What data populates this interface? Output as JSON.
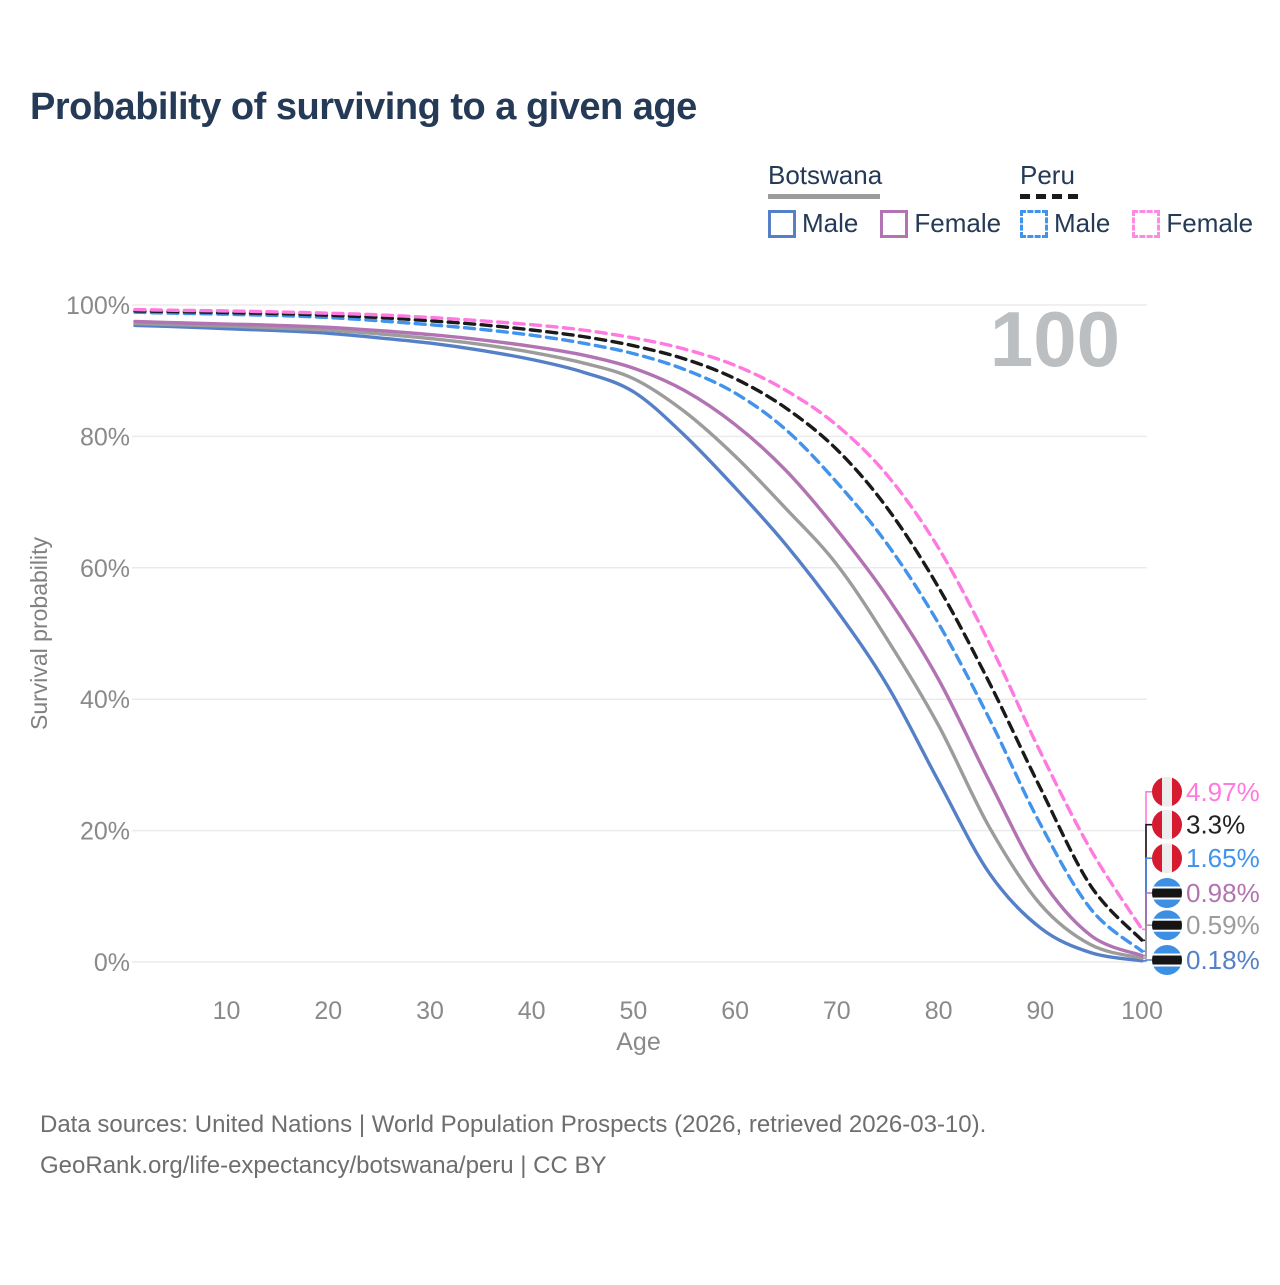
{
  "page": {
    "title": "Probability of surviving to a given age",
    "watermark": "100"
  },
  "legend": {
    "groups": [
      {
        "id": "botswana",
        "label": "Botswana",
        "line": {
          "style": "solid",
          "color": "#9c9c9c"
        },
        "items": [
          {
            "label": "Male",
            "color": "#5580c8",
            "dash": false
          },
          {
            "label": "Female",
            "color": "#b273b2",
            "dash": false
          }
        ]
      },
      {
        "id": "peru",
        "label": "Peru",
        "line": {
          "style": "dashed",
          "color": "#1a1a1a"
        },
        "items": [
          {
            "label": "Male",
            "color": "#4193ec",
            "dash": true
          },
          {
            "label": "Female",
            "color": "#ff8ae4",
            "dash": true
          }
        ]
      }
    ]
  },
  "flags": {
    "peru": {
      "red": "#d61a30",
      "white": "#ededed"
    },
    "botswana": {
      "blue": "#3c8fe3",
      "black": "#151515",
      "white": "#ffffff"
    }
  },
  "chart_data": {
    "type": "line",
    "title": "Probability of surviving to a given age",
    "xlabel": "Age",
    "ylabel": "Survival probability",
    "xlim": [
      1,
      100
    ],
    "ylim": [
      0,
      100
    ],
    "grid": "horizontal",
    "legend_position": "top-right",
    "x_ticks": [
      {
        "v": 10,
        "label": "10"
      },
      {
        "v": 20,
        "label": "20"
      },
      {
        "v": 30,
        "label": "30"
      },
      {
        "v": 40,
        "label": "40"
      },
      {
        "v": 50,
        "label": "50"
      },
      {
        "v": 60,
        "label": "60"
      },
      {
        "v": 70,
        "label": "70"
      },
      {
        "v": 80,
        "label": "80"
      },
      {
        "v": 90,
        "label": "90"
      },
      {
        "v": 100,
        "label": "100"
      }
    ],
    "y_ticks": [
      {
        "v": 100,
        "label": "100%"
      },
      {
        "v": 80,
        "label": "80%"
      },
      {
        "v": 60,
        "label": "60%"
      },
      {
        "v": 40,
        "label": "40%"
      },
      {
        "v": 20,
        "label": "20%"
      },
      {
        "v": 0,
        "label": "0%"
      }
    ],
    "series": [
      {
        "name": "Peru - Female",
        "country": "peru",
        "sex": "female",
        "color": "#ff7ae0",
        "label_color": "#ff7ae0",
        "dash": true,
        "flag": "peru",
        "end_label": "4.97%",
        "end_value": 4.97,
        "label_row_pct": 25.9,
        "points": [
          [
            1,
            99.3
          ],
          [
            5,
            99.2
          ],
          [
            10,
            99.1
          ],
          [
            15,
            98.95
          ],
          [
            20,
            98.75
          ],
          [
            25,
            98.5
          ],
          [
            30,
            98.1
          ],
          [
            35,
            97.6
          ],
          [
            40,
            97.0
          ],
          [
            45,
            96.2
          ],
          [
            50,
            95.0
          ],
          [
            55,
            93.3
          ],
          [
            60,
            90.8
          ],
          [
            65,
            87.0
          ],
          [
            70,
            81.7
          ],
          [
            75,
            74.0
          ],
          [
            80,
            63.0
          ],
          [
            85,
            48.5
          ],
          [
            90,
            32.0
          ],
          [
            95,
            17.0
          ],
          [
            100,
            4.97
          ]
        ]
      },
      {
        "name": "Peru - Both sexes",
        "country": "peru",
        "sex": "both",
        "color": "#1a1a1a",
        "label_color": "#222222",
        "dash": true,
        "flag": "peru",
        "end_label": "3.3%",
        "end_value": 3.3,
        "label_row_pct": 20.9,
        "points": [
          [
            1,
            99.1
          ],
          [
            5,
            99.0
          ],
          [
            10,
            98.85
          ],
          [
            15,
            98.7
          ],
          [
            20,
            98.45
          ],
          [
            25,
            98.1
          ],
          [
            30,
            97.6
          ],
          [
            35,
            97.0
          ],
          [
            40,
            96.2
          ],
          [
            45,
            95.2
          ],
          [
            50,
            93.8
          ],
          [
            55,
            91.8
          ],
          [
            60,
            88.8
          ],
          [
            65,
            84.3
          ],
          [
            70,
            78.0
          ],
          [
            75,
            69.0
          ],
          [
            80,
            57.0
          ],
          [
            85,
            42.5
          ],
          [
            90,
            26.5
          ],
          [
            95,
            11.5
          ],
          [
            100,
            3.3
          ]
        ]
      },
      {
        "name": "Peru - Male",
        "country": "peru",
        "sex": "male",
        "color": "#4193ec",
        "label_color": "#4193ec",
        "dash": true,
        "flag": "peru",
        "end_label": "1.65%",
        "end_value": 1.65,
        "label_row_pct": 15.8,
        "points": [
          [
            1,
            98.9
          ],
          [
            5,
            98.75
          ],
          [
            10,
            98.6
          ],
          [
            15,
            98.4
          ],
          [
            20,
            98.1
          ],
          [
            25,
            97.6
          ],
          [
            30,
            97.0
          ],
          [
            35,
            96.3
          ],
          [
            40,
            95.4
          ],
          [
            45,
            94.2
          ],
          [
            50,
            92.6
          ],
          [
            55,
            90.2
          ],
          [
            60,
            86.6
          ],
          [
            65,
            81.0
          ],
          [
            70,
            73.0
          ],
          [
            75,
            63.5
          ],
          [
            80,
            51.5
          ],
          [
            85,
            37.0
          ],
          [
            90,
            21.0
          ],
          [
            95,
            8.0
          ],
          [
            100,
            1.65
          ]
        ]
      },
      {
        "name": "Botswana - Female",
        "country": "botswana",
        "sex": "female",
        "color": "#b273b2",
        "label_color": "#b273b2",
        "dash": false,
        "flag": "botswana",
        "end_label": "0.98%",
        "end_value": 0.98,
        "label_row_pct": 10.5,
        "points": [
          [
            1,
            97.5
          ],
          [
            5,
            97.3
          ],
          [
            10,
            97.1
          ],
          [
            15,
            96.9
          ],
          [
            20,
            96.6
          ],
          [
            25,
            96.1
          ],
          [
            30,
            95.5
          ],
          [
            35,
            94.7
          ],
          [
            40,
            93.7
          ],
          [
            45,
            92.4
          ],
          [
            50,
            90.4
          ],
          [
            55,
            87.0
          ],
          [
            60,
            81.8
          ],
          [
            65,
            74.8
          ],
          [
            70,
            65.8
          ],
          [
            75,
            55.5
          ],
          [
            80,
            43.0
          ],
          [
            85,
            27.5
          ],
          [
            90,
            12.8
          ],
          [
            95,
            4.0
          ],
          [
            100,
            0.98
          ]
        ]
      },
      {
        "name": "Botswana - Both sexes",
        "country": "botswana",
        "sex": "both",
        "color": "#9c9c9c",
        "label_color": "#9c9c9c",
        "dash": false,
        "flag": "botswana",
        "end_label": "0.59%",
        "end_value": 0.59,
        "label_row_pct": 5.6,
        "points": [
          [
            1,
            97.2
          ],
          [
            5,
            97.0
          ],
          [
            10,
            96.8
          ],
          [
            15,
            96.5
          ],
          [
            20,
            96.2
          ],
          [
            25,
            95.6
          ],
          [
            30,
            94.9
          ],
          [
            35,
            94.0
          ],
          [
            40,
            92.8
          ],
          [
            45,
            91.2
          ],
          [
            50,
            88.8
          ],
          [
            55,
            83.8
          ],
          [
            60,
            77.0
          ],
          [
            65,
            69.0
          ],
          [
            70,
            60.5
          ],
          [
            75,
            49.0
          ],
          [
            80,
            36.0
          ],
          [
            85,
            20.5
          ],
          [
            90,
            8.8
          ],
          [
            95,
            2.6
          ],
          [
            100,
            0.59
          ]
        ]
      },
      {
        "name": "Botswana - Male",
        "country": "botswana",
        "sex": "male",
        "color": "#5580c8",
        "label_color": "#5580c8",
        "dash": false,
        "flag": "botswana",
        "end_label": "0.18%",
        "end_value": 0.18,
        "label_row_pct": 0.3,
        "points": [
          [
            1,
            96.9
          ],
          [
            5,
            96.7
          ],
          [
            10,
            96.4
          ],
          [
            15,
            96.1
          ],
          [
            20,
            95.7
          ],
          [
            25,
            95.0
          ],
          [
            30,
            94.2
          ],
          [
            35,
            93.1
          ],
          [
            40,
            91.7
          ],
          [
            45,
            89.8
          ],
          [
            50,
            86.8
          ],
          [
            55,
            80.2
          ],
          [
            60,
            72.2
          ],
          [
            65,
            63.5
          ],
          [
            70,
            53.5
          ],
          [
            75,
            42.0
          ],
          [
            80,
            27.5
          ],
          [
            85,
            13.5
          ],
          [
            90,
            5.2
          ],
          [
            95,
            1.4
          ],
          [
            100,
            0.18
          ]
        ]
      }
    ]
  },
  "footer": {
    "line1": "Data sources: United Nations | World Population Prospects (2026, retrieved 2026-03-10).",
    "line2": "GeoRank.org/life-expectancy/botswana/peru | CC BY"
  }
}
